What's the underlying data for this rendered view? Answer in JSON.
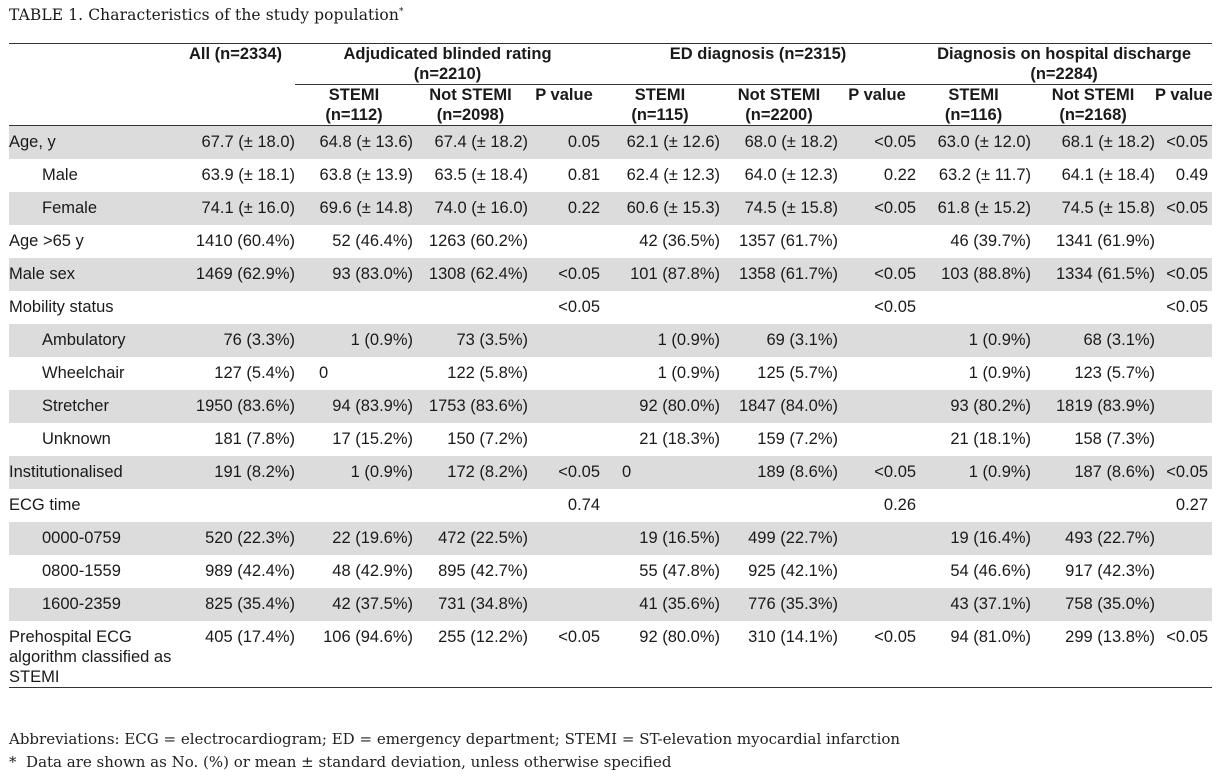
{
  "title": {
    "text": "TABLE 1.  Characteristics of the study population",
    "marker": "*"
  },
  "header": {
    "all": "All (n=2334)",
    "groups": [
      {
        "label": "Adjudicated blinded rating",
        "n": "(n=2210)"
      },
      {
        "label": "ED diagnosis (n=2315)",
        "n": ""
      },
      {
        "label": "Diagnosis on hospital discharge",
        "n": "(n=2284)"
      }
    ],
    "subcols": [
      {
        "stemi": "STEMI",
        "stemi_n": "(n=112)",
        "not": "Not STEMI",
        "not_n": "(n=2098)",
        "p": "P value"
      },
      {
        "stemi": "STEMI",
        "stemi_n": "(n=115)",
        "not": "Not STEMI",
        "not_n": "(n=2200)",
        "p": "P value"
      },
      {
        "stemi": "STEMI",
        "stemi_n": "(n=116)",
        "not": "Not STEMI",
        "not_n": "(n=2168)",
        "p": "P value"
      }
    ]
  },
  "rows": [
    {
      "label": "Age, y",
      "all": "67.7 (± 18.0)",
      "v": [
        "64.8 (± 13.6)",
        "67.4 (± 18.2)",
        "0.05",
        "62.1 (± 12.6)",
        "68.0 (± 18.2)",
        "<0.05",
        "63.0 (± 12.0)",
        "68.1 (± 18.2)",
        "<0.05"
      ]
    },
    {
      "label": "Male",
      "all": "63.9 (± 18.1)",
      "v": [
        "63.8 (± 13.9)",
        "63.5 (± 18.4)",
        "0.81",
        "62.4 (± 12.3)",
        "64.0 (± 12.3)",
        "0.22",
        "63.2 (± 11.7)",
        "64.1 (± 18.4)",
        "0.49"
      ]
    },
    {
      "label": "Female",
      "all": "74.1 (± 16.0)",
      "v": [
        "69.6 (± 14.8)",
        "74.0 (± 16.0)",
        "0.22",
        "60.6 (± 15.3)",
        "74.5 (± 15.8)",
        "<0.05",
        "61.8 (± 15.2)",
        "74.5 (± 15.8)",
        "<0.05"
      ]
    },
    {
      "label": "Age >65 y",
      "all": "1410 (60.4%)",
      "v": [
        "52 (46.4%)",
        "1263 (60.2%)",
        "",
        "42 (36.5%)",
        "1357 (61.7%)",
        "",
        "46 (39.7%)",
        "1341 (61.9%)",
        ""
      ]
    },
    {
      "label": "Male sex",
      "all": "1469 (62.9%)",
      "v": [
        "93 (83.0%)",
        "1308 (62.4%)",
        "<0.05",
        "101 (87.8%)",
        "1358 (61.7%)",
        "<0.05",
        "103 (88.8%)",
        "1334 (61.5%)",
        "<0.05"
      ]
    },
    {
      "label": "Mobility status",
      "all": "",
      "v": [
        "",
        "",
        "<0.05",
        "",
        "",
        "<0.05",
        "",
        "",
        "<0.05"
      ]
    },
    {
      "label": "Ambulatory",
      "all": "76 (3.3%)",
      "v": [
        "1 (0.9%)",
        "73 (3.5%)",
        "",
        "1 (0.9%)",
        "69 (3.1%)",
        "",
        "1 (0.9%)",
        "68 (3.1%)",
        ""
      ]
    },
    {
      "label": "Wheelchair",
      "all": "127 (5.4%)",
      "v": [
        "0",
        "122 (5.8%)",
        "",
        "1 (0.9%)",
        "125 (5.7%)",
        "",
        "1 (0.9%)",
        "123 (5.7%)",
        ""
      ]
    },
    {
      "label": "Stretcher",
      "all": "1950 (83.6%)",
      "v": [
        "94 (83.9%)",
        "1753 (83.6%)",
        "",
        "92 (80.0%)",
        "1847 (84.0%)",
        "",
        "93 (80.2%)",
        "1819 (83.9%)",
        ""
      ]
    },
    {
      "label": "Unknown",
      "all": "181 (7.8%)",
      "v": [
        "17 (15.2%)",
        "150 (7.2%)",
        "",
        "21 (18.3%)",
        "159 (7.2%)",
        "",
        "21 (18.1%)",
        "158 (7.3%)",
        ""
      ]
    },
    {
      "label": "Institutionalised",
      "all": "191 (8.2%)",
      "v": [
        "1 (0.9%)",
        "172 (8.2%)",
        "<0.05",
        "0",
        "189 (8.6%)",
        "<0.05",
        "1 (0.9%)",
        "187 (8.6%)",
        "<0.05"
      ]
    },
    {
      "label": "ECG time",
      "all": "",
      "v": [
        "",
        "",
        "0.74",
        "",
        "",
        "0.26",
        "",
        "",
        "0.27"
      ]
    },
    {
      "label": "0000-0759",
      "all": "520 (22.3%)",
      "v": [
        "22 (19.6%)",
        "472 (22.5%)",
        "",
        "19 (16.5%)",
        "499 (22.7%)",
        "",
        "19 (16.4%)",
        "493 (22.7%)",
        ""
      ]
    },
    {
      "label": "0800-1559",
      "all": "989 (42.4%)",
      "v": [
        "48 (42.9%)",
        "895 (42.7%)",
        "",
        "55 (47.8%)",
        "925 (42.1%)",
        "",
        "54 (46.6%)",
        "917 (42.3%)",
        ""
      ]
    },
    {
      "label": "1600-2359",
      "all": "825 (35.4%)",
      "v": [
        "42 (37.5%)",
        "731 (34.8%)",
        "",
        "41 (35.6%)",
        "776 (35.3%)",
        "",
        "43 (37.1%)",
        "758 (35.0%)",
        ""
      ]
    },
    {
      "label": "Prehospital ECG algorithm classified as STEMI",
      "all": "405 (17.4%)",
      "v": [
        "106 (94.6%)",
        "255 (12.2%)",
        "<0.05",
        "92 (80.0%)",
        "310 (14.1%)",
        "<0.05",
        "94 (81.0%)",
        "299 (13.8%)",
        "<0.05"
      ]
    }
  ],
  "footnotes": {
    "abbreviations": "Abbreviations: ECG = electrocardiogram; ED = emergency department; STEMI = ST-elevation myocardial infarction",
    "marker": "*",
    "note": "Data are shown as No. (%) or mean ± standard deviation, unless otherwise specified"
  },
  "colors": {
    "shading": "#dcdcdc",
    "rule": "#333333"
  }
}
